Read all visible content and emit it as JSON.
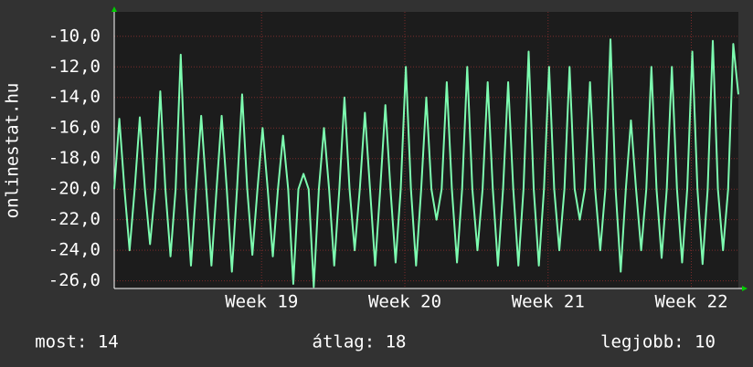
{
  "chart_data": {
    "type": "line",
    "ylabel": "onlinestat.hu",
    "xlim": [
      0,
      30.5
    ],
    "ylim": [
      -26.5,
      -8.4
    ],
    "xticks": [
      {
        "value": 7.2,
        "label": "Week 19"
      },
      {
        "value": 14.2,
        "label": "Week 20"
      },
      {
        "value": 21.2,
        "label": "Week 21"
      },
      {
        "value": 28.2,
        "label": "Week 22"
      }
    ],
    "yticks": [
      {
        "value": -10,
        "label": "-10,0"
      },
      {
        "value": -12,
        "label": "-12,0"
      },
      {
        "value": -14,
        "label": "-14,0"
      },
      {
        "value": -16,
        "label": "-16,0"
      },
      {
        "value": -18,
        "label": "-18,0"
      },
      {
        "value": -20,
        "label": "-20,0"
      },
      {
        "value": -22,
        "label": "-22,0"
      },
      {
        "value": -24,
        "label": "-24,0"
      },
      {
        "value": -26,
        "label": "-26,0"
      }
    ],
    "grid": true,
    "x": [
      0,
      0.25,
      0.5,
      0.75,
      1,
      1.25,
      1.5,
      1.75,
      2,
      2.25,
      2.5,
      2.75,
      3,
      3.25,
      3.5,
      3.75,
      4,
      4.25,
      4.5,
      4.75,
      5,
      5.25,
      5.5,
      5.75,
      6,
      6.25,
      6.5,
      6.75,
      7,
      7.25,
      7.5,
      7.75,
      8,
      8.25,
      8.5,
      8.75,
      9,
      9.25,
      9.5,
      9.75,
      10,
      10.25,
      10.5,
      10.75,
      11,
      11.25,
      11.5,
      11.75,
      12,
      12.25,
      12.5,
      12.75,
      13,
      13.25,
      13.5,
      13.75,
      14,
      14.25,
      14.5,
      14.75,
      15,
      15.25,
      15.5,
      15.75,
      16,
      16.25,
      16.5,
      16.75,
      17,
      17.25,
      17.5,
      17.75,
      18,
      18.25,
      18.5,
      18.75,
      19,
      19.25,
      19.5,
      19.75,
      20,
      20.25,
      20.5,
      20.75,
      21,
      21.25,
      21.5,
      21.75,
      22,
      22.25,
      22.5,
      22.75,
      23,
      23.25,
      23.5,
      23.75,
      24,
      24.25,
      24.5,
      24.75,
      25,
      25.25,
      25.5,
      25.75,
      26,
      26.25,
      26.5,
      26.75,
      27,
      27.25,
      27.5,
      27.75,
      28,
      28.25,
      28.5,
      28.75,
      29,
      29.25,
      29.5,
      29.75,
      30,
      30.25,
      30.5
    ],
    "series": [
      {
        "name": "onlinestat.hu",
        "color": "#7dfcb0",
        "values": [
          -20,
          -15.4,
          -20,
          -24,
          -20,
          -15.3,
          -20,
          -23.6,
          -20,
          -13.6,
          -20,
          -24.4,
          -20,
          -11.2,
          -20,
          -25,
          -20,
          -15.2,
          -20,
          -25,
          -20,
          -15.2,
          -20,
          -25.4,
          -20,
          -13.8,
          -20,
          -24.3,
          -20,
          -16,
          -20,
          -24.4,
          -20,
          -16.5,
          -20,
          -26.2,
          -20,
          -19,
          -20,
          -26.4,
          -20,
          -16,
          -20,
          -25,
          -20,
          -14,
          -20,
          -24,
          -20,
          -15,
          -20,
          -25,
          -20,
          -14.5,
          -20,
          -24.8,
          -20,
          -12,
          -20,
          -25,
          -20,
          -14,
          -20,
          -22,
          -20,
          -13,
          -20,
          -24.8,
          -20,
          -12,
          -20,
          -24,
          -20,
          -13,
          -20,
          -25,
          -20,
          -13,
          -20,
          -25,
          -20,
          -11,
          -20,
          -25,
          -20,
          -12,
          -20,
          -24,
          -20,
          -12,
          -20,
          -22,
          -20,
          -13,
          -20,
          -24,
          -20,
          -10.2,
          -20,
          -25.4,
          -20,
          -15.5,
          -20,
          -24,
          -20,
          -12,
          -20,
          -24.5,
          -20,
          -12,
          -20,
          -24.8,
          -20,
          -11,
          -20,
          -24.9,
          -20,
          -10.3,
          -20,
          -24,
          -20,
          -10.5,
          -13.8
        ]
      }
    ],
    "footer": [
      "most: 14",
      "átlag: 18",
      "legjobb: 10"
    ]
  }
}
